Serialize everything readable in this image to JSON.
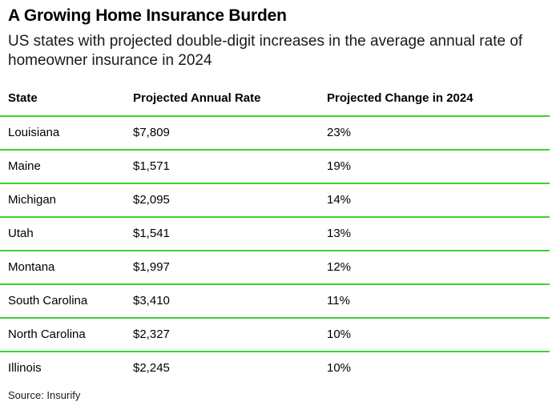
{
  "chart_data": {
    "type": "table",
    "title": "A Growing Home Insurance Burden",
    "subtitle": "US states with projected double-digit increases in the average annual rate of homeowner insurance in 2024",
    "columns": [
      "State",
      "Projected Annual Rate",
      "Projected Change in 2024"
    ],
    "rows": [
      [
        "Louisiana",
        "$7,809",
        "23%"
      ],
      [
        "Maine",
        "$1,571",
        "19%"
      ],
      [
        "Michigan",
        "$2,095",
        "14%"
      ],
      [
        "Utah",
        "$1,541",
        "13%"
      ],
      [
        "Montana",
        "$1,997",
        "12%"
      ],
      [
        "South Carolina",
        "$3,410",
        "11%"
      ],
      [
        "North Carolina",
        "$2,327",
        "10%"
      ],
      [
        "Illinois",
        "$2,245",
        "10%"
      ]
    ],
    "source": "Source: Insurify",
    "rule_color": "#38d430"
  }
}
